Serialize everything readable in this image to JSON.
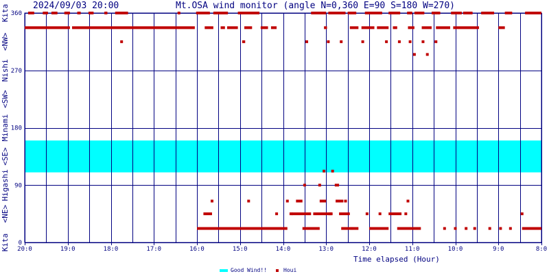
{
  "header": {
    "timestamp": "2024/09/03 20:00",
    "title": "Mt.OSA wind monitor (angle N=0,360 E=90 S=180 W=270)"
  },
  "chart_data": {
    "type": "scatter",
    "title": "Mt.OSA wind monitor (angle N=0,360 E=90 S=180 W=270)",
    "xlabel": "Time elapsed (Hour)",
    "ylabel": "",
    "xlim": [
      20,
      8
    ],
    "ylim": [
      0,
      360
    ],
    "grid": true,
    "legend_position": "bottom-center",
    "colors": {
      "grid": "#000080",
      "good_wind": "#00ffff",
      "houi": "#c00000"
    },
    "x_ticks": [
      {
        "value": 20,
        "label": "20:0"
      },
      {
        "value": 19,
        "label": "19:0"
      },
      {
        "value": 18,
        "label": "18:0"
      },
      {
        "value": 17,
        "label": "17:0"
      },
      {
        "value": 16,
        "label": "16:0"
      },
      {
        "value": 15,
        "label": "15:0"
      },
      {
        "value": 14,
        "label": "14:0"
      },
      {
        "value": 13,
        "label": "13:0"
      },
      {
        "value": 12,
        "label": "12:0"
      },
      {
        "value": 11,
        "label": "11:0"
      },
      {
        "value": 10,
        "label": "10:0"
      },
      {
        "value": 9,
        "label": "9:0"
      },
      {
        "value": 8,
        "label": "8:0"
      }
    ],
    "y_ticks": [
      {
        "value": 0,
        "label": "0"
      },
      {
        "value": 90,
        "label": "90"
      },
      {
        "value": 180,
        "label": "180"
      },
      {
        "value": 270,
        "label": "270"
      },
      {
        "value": 360,
        "label": "360"
      }
    ],
    "y_direction_labels": [
      "Kita",
      "<NE>",
      "Higashi",
      "<SE>",
      "Minami",
      "<SW>",
      "Nishi",
      "<NW>",
      "Kita"
    ],
    "good_wind_band": [
      110,
      160
    ],
    "legend": [
      {
        "name": "Good Wind!!",
        "color": "#00ffff"
      },
      {
        "name": "Houi",
        "color": "#c00000"
      }
    ],
    "series": [
      {
        "name": "Houi",
        "segments": [
          {
            "x0": 19.92,
            "x1": 19.78,
            "y": 360
          },
          {
            "x0": 19.58,
            "x1": 19.46,
            "y": 360
          },
          {
            "x0": 19.38,
            "x1": 19.24,
            "y": 360
          },
          {
            "x0": 19.08,
            "x1": 18.95,
            "y": 360
          },
          {
            "x0": 18.78,
            "x1": 18.7,
            "y": 360
          },
          {
            "x0": 18.52,
            "x1": 18.4,
            "y": 360
          },
          {
            "x0": 18.15,
            "x1": 18.08,
            "y": 360
          },
          {
            "x0": 17.9,
            "x1": 17.6,
            "y": 360
          },
          {
            "x0": 16.45,
            "x1": 16.4,
            "y": 360
          },
          {
            "x0": 16.02,
            "x1": 15.7,
            "y": 360
          },
          {
            "x0": 15.62,
            "x1": 15.28,
            "y": 360
          },
          {
            "x0": 15.05,
            "x1": 14.55,
            "y": 360
          },
          {
            "x0": 13.35,
            "x1": 13.0,
            "y": 360
          },
          {
            "x0": 12.95,
            "x1": 12.55,
            "y": 360
          },
          {
            "x0": 12.5,
            "x1": 12.3,
            "y": 360
          },
          {
            "x0": 12.1,
            "x1": 11.7,
            "y": 360
          },
          {
            "x0": 11.55,
            "x1": 11.28,
            "y": 360
          },
          {
            "x0": 11.12,
            "x1": 11.0,
            "y": 360
          },
          {
            "x0": 10.95,
            "x1": 10.72,
            "y": 360
          },
          {
            "x0": 10.55,
            "x1": 10.35,
            "y": 360
          },
          {
            "x0": 10.1,
            "x1": 9.85,
            "y": 360
          },
          {
            "x0": 9.82,
            "x1": 9.6,
            "y": 360
          },
          {
            "x0": 9.4,
            "x1": 9.1,
            "y": 360
          },
          {
            "x0": 8.85,
            "x1": 8.68,
            "y": 360
          },
          {
            "x0": 8.38,
            "x1": 8.0,
            "y": 360
          },
          {
            "x0": 20.0,
            "x1": 18.95,
            "y": 337
          },
          {
            "x0": 18.9,
            "x1": 16.05,
            "y": 337
          },
          {
            "x0": 15.82,
            "x1": 15.62,
            "y": 337
          },
          {
            "x0": 15.45,
            "x1": 15.35,
            "y": 337
          },
          {
            "x0": 15.3,
            "x1": 15.05,
            "y": 337
          },
          {
            "x0": 14.9,
            "x1": 14.72,
            "y": 337
          },
          {
            "x0": 14.52,
            "x1": 14.35,
            "y": 337
          },
          {
            "x0": 14.28,
            "x1": 14.15,
            "y": 337
          },
          {
            "x0": 13.05,
            "x1": 12.98,
            "y": 337
          },
          {
            "x0": 12.45,
            "x1": 12.25,
            "y": 337
          },
          {
            "x0": 12.18,
            "x1": 11.88,
            "y": 337
          },
          {
            "x0": 11.82,
            "x1": 11.55,
            "y": 337
          },
          {
            "x0": 11.45,
            "x1": 11.35,
            "y": 337
          },
          {
            "x0": 11.1,
            "x1": 10.95,
            "y": 337
          },
          {
            "x0": 10.78,
            "x1": 10.55,
            "y": 337
          },
          {
            "x0": 10.45,
            "x1": 10.12,
            "y": 337
          },
          {
            "x0": 10.05,
            "x1": 9.45,
            "y": 337
          },
          {
            "x0": 9.0,
            "x1": 8.85,
            "y": 337
          },
          {
            "x0": 14.95,
            "x1": 14.88,
            "y": 315
          },
          {
            "x0": 16.0,
            "x1": 13.9,
            "y": 22
          },
          {
            "x0": 13.55,
            "x1": 13.15,
            "y": 22
          },
          {
            "x0": 12.65,
            "x1": 12.25,
            "y": 22
          },
          {
            "x0": 12.0,
            "x1": 11.55,
            "y": 22
          },
          {
            "x0": 11.35,
            "x1": 10.8,
            "y": 22
          },
          {
            "x0": 8.45,
            "x1": 8.0,
            "y": 22
          },
          {
            "x0": 15.85,
            "x1": 15.65,
            "y": 45
          },
          {
            "x0": 13.8,
            "x1": 13.35,
            "y": 45
          },
          {
            "x0": 13.3,
            "x1": 12.85,
            "y": 45
          },
          {
            "x0": 12.7,
            "x1": 12.45,
            "y": 45
          },
          {
            "x0": 11.55,
            "x1": 11.25,
            "y": 45
          },
          {
            "x0": 13.15,
            "x1": 13.0,
            "y": 65
          },
          {
            "x0": 12.78,
            "x1": 12.6,
            "y": 65
          },
          {
            "x0": 12.8,
            "x1": 12.7,
            "y": 90
          },
          {
            "x0": 13.85,
            "x1": 13.78,
            "y": 45
          },
          {
            "x0": 13.7,
            "x1": 13.55,
            "y": 65
          }
        ],
        "points": [
          {
            "x": 17.75,
            "y": 315
          },
          {
            "x": 13.45,
            "y": 315
          },
          {
            "x": 12.95,
            "y": 315
          },
          {
            "x": 12.65,
            "y": 315
          },
          {
            "x": 12.15,
            "y": 315
          },
          {
            "x": 11.6,
            "y": 315
          },
          {
            "x": 11.3,
            "y": 315
          },
          {
            "x": 11.05,
            "y": 315
          },
          {
            "x": 10.95,
            "y": 295
          },
          {
            "x": 10.65,
            "y": 295
          },
          {
            "x": 10.75,
            "y": 315
          },
          {
            "x": 10.45,
            "y": 315
          },
          {
            "x": 15.65,
            "y": 65
          },
          {
            "x": 14.8,
            "y": 65
          },
          {
            "x": 14.15,
            "y": 45
          },
          {
            "x": 13.9,
            "y": 65
          },
          {
            "x": 13.5,
            "y": 90
          },
          {
            "x": 13.15,
            "y": 90
          },
          {
            "x": 13.05,
            "y": 112
          },
          {
            "x": 12.85,
            "y": 112
          },
          {
            "x": 12.9,
            "y": 45
          },
          {
            "x": 12.55,
            "y": 65
          },
          {
            "x": 12.4,
            "y": 22
          },
          {
            "x": 12.05,
            "y": 45
          },
          {
            "x": 11.75,
            "y": 45
          },
          {
            "x": 11.1,
            "y": 65
          },
          {
            "x": 11.15,
            "y": 45
          },
          {
            "x": 10.25,
            "y": 22
          },
          {
            "x": 10.0,
            "y": 22
          },
          {
            "x": 9.75,
            "y": 22
          },
          {
            "x": 9.55,
            "y": 22
          },
          {
            "x": 9.2,
            "y": 22
          },
          {
            "x": 8.95,
            "y": 22
          },
          {
            "x": 8.72,
            "y": 22
          },
          {
            "x": 8.45,
            "y": 45
          }
        ]
      }
    ]
  }
}
